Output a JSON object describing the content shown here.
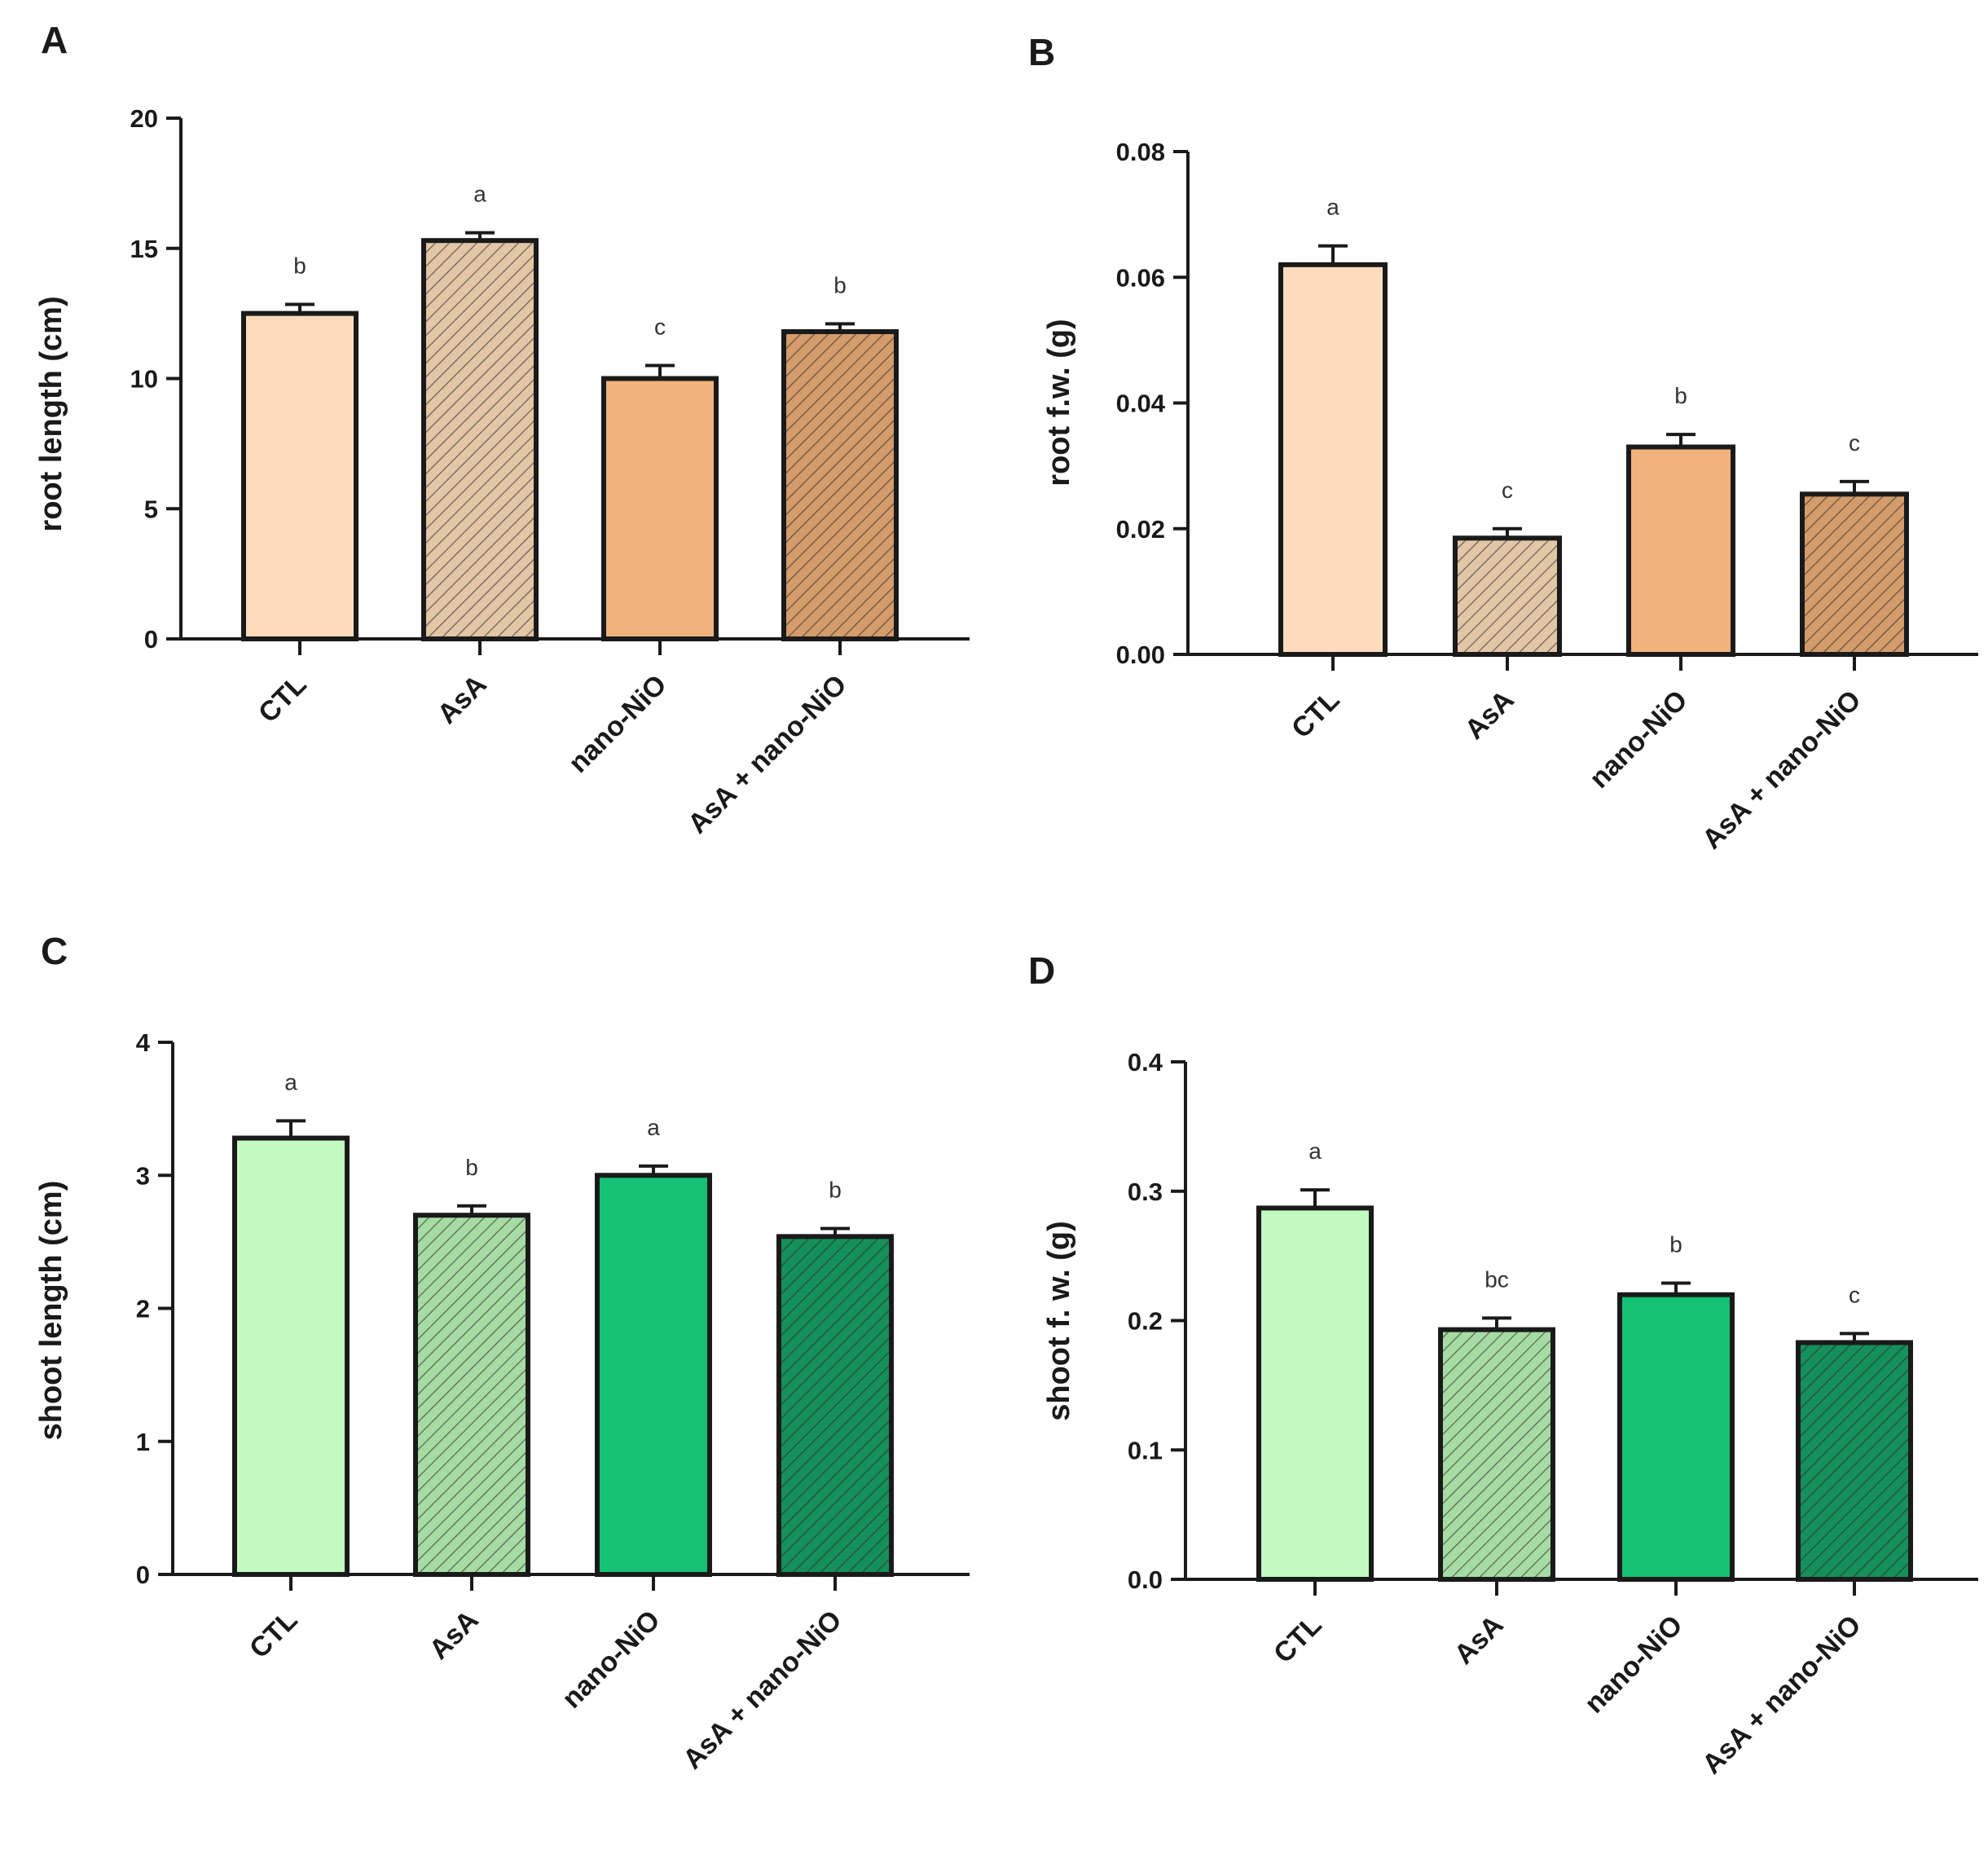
{
  "figure": {
    "chart_data": [
      {
        "panel": "A",
        "type": "bar",
        "categories": [
          "CTL",
          "AsA",
          "nano-NiO",
          "AsA + nano-NiO"
        ],
        "values": [
          12.5,
          15.3,
          10.0,
          11.8
        ],
        "errors": [
          0.35,
          0.3,
          0.5,
          0.3
        ],
        "significance": [
          "b",
          "a",
          "c",
          "b"
        ],
        "hatched": [
          false,
          true,
          false,
          true
        ],
        "colors": [
          "#fcdcbd",
          "#e3c6a6",
          "#f2b27c",
          "#d39c6a"
        ],
        "ylabel": "root length (cm)",
        "ylim": [
          0,
          20
        ],
        "yticks": [
          "0",
          "5",
          "10",
          "15",
          "20"
        ],
        "ytick_values": [
          0,
          5,
          10,
          15,
          20
        ]
      },
      {
        "panel": "B",
        "type": "bar",
        "categories": [
          "CTL",
          "AsA",
          "nano-NiO",
          "AsA + nano-NiO"
        ],
        "values": [
          0.062,
          0.0185,
          0.033,
          0.0255
        ],
        "errors": [
          0.003,
          0.0015,
          0.002,
          0.002
        ],
        "significance": [
          "a",
          "c",
          "b",
          "c"
        ],
        "hatched": [
          false,
          true,
          false,
          true
        ],
        "colors": [
          "#fcdcbd",
          "#e3c6a6",
          "#f2b27c",
          "#d39c6a"
        ],
        "ylabel": "root f.w. (g)",
        "ylim": [
          0,
          0.08
        ],
        "yticks": [
          "0.00",
          "0.02",
          "0.04",
          "0.06",
          "0.08"
        ],
        "ytick_values": [
          0,
          0.02,
          0.04,
          0.06,
          0.08
        ]
      },
      {
        "panel": "C",
        "type": "bar",
        "categories": [
          "CTL",
          "AsA",
          "nano-NiO",
          "AsA + nano-NiO"
        ],
        "values": [
          3.28,
          2.7,
          3.0,
          2.54
        ],
        "errors": [
          0.13,
          0.07,
          0.07,
          0.06
        ],
        "significance": [
          "a",
          "b",
          "a",
          "b"
        ],
        "hatched": [
          false,
          true,
          false,
          true
        ],
        "colors": [
          "#c2fac0",
          "#a6dca3",
          "#16c074",
          "#15905a"
        ],
        "ylabel": "shoot length (cm)",
        "ylim": [
          0,
          4
        ],
        "yticks": [
          "0",
          "1",
          "2",
          "3",
          "4"
        ],
        "ytick_values": [
          0,
          1,
          2,
          3,
          4
        ]
      },
      {
        "panel": "D",
        "type": "bar",
        "categories": [
          "CTL",
          "AsA",
          "nano-NiO",
          "AsA + nano-NiO"
        ],
        "values": [
          0.287,
          0.193,
          0.22,
          0.183
        ],
        "errors": [
          0.014,
          0.009,
          0.009,
          0.007
        ],
        "significance": [
          "a",
          "bc",
          "b",
          "c"
        ],
        "hatched": [
          false,
          true,
          false,
          true
        ],
        "colors": [
          "#c2fac0",
          "#a6dca3",
          "#16c074",
          "#15905a"
        ],
        "ylabel": "shoot f. w. (g)",
        "ylim": [
          0,
          0.4
        ],
        "yticks": [
          "0.0",
          "0.1",
          "0.2",
          "0.3",
          "0.4"
        ],
        "ytick_values": [
          0,
          0.1,
          0.2,
          0.3,
          0.4
        ]
      }
    ]
  }
}
